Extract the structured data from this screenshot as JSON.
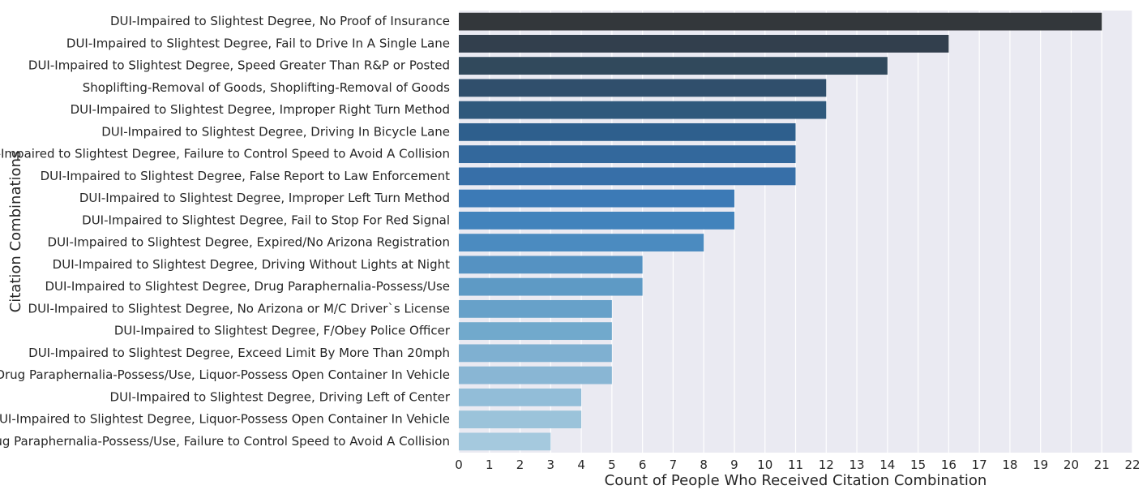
{
  "chart_data": {
    "type": "bar",
    "orientation": "horizontal",
    "xlabel": "Count of People Who Received Citation Combination",
    "ylabel": "Citation Combinations",
    "xlim": [
      0,
      22
    ],
    "xticks": [
      "0",
      "1",
      "2",
      "3",
      "4",
      "5",
      "6",
      "7",
      "8",
      "9",
      "10",
      "11",
      "12",
      "13",
      "14",
      "15",
      "16",
      "17",
      "18",
      "19",
      "20",
      "21",
      "22"
    ],
    "grid": true,
    "background": "#eaeaf2",
    "colors": [
      "#33373b",
      "#323f4d",
      "#31495c",
      "#304f6c",
      "#2f597c",
      "#2e5f8d",
      "#33689c",
      "#376fa8",
      "#3c7ab6",
      "#4283bc",
      "#4b8bc0",
      "#5592c2",
      "#5e9ac5",
      "#67a1c9",
      "#71a9cc",
      "#7fb0d1",
      "#89b6d4",
      "#92bdd8",
      "#9bc3da",
      "#a5c9de"
    ],
    "categories": [
      "DUI-Impaired to Slightest Degree, No Proof of Insurance",
      "DUI-Impaired to Slightest Degree, Fail to Drive In A Single Lane",
      "DUI-Impaired to Slightest Degree, Speed Greater Than R&P or Posted",
      "Shoplifting-Removal of Goods, Shoplifting-Removal of Goods",
      "DUI-Impaired to Slightest Degree, Improper Right Turn Method",
      "DUI-Impaired to Slightest Degree, Driving In Bicycle Lane",
      "DUI-Impaired to Slightest Degree, Failure to Control Speed to Avoid A Collision",
      "DUI-Impaired to Slightest Degree, False Report to Law Enforcement",
      "DUI-Impaired to Slightest Degree, Improper Left Turn Method",
      "DUI-Impaired to Slightest Degree, Fail to Stop For Red Signal",
      "DUI-Impaired to Slightest Degree, Expired/No Arizona Registration",
      "DUI-Impaired to Slightest Degree, Driving Without Lights at Night",
      "DUI-Impaired to Slightest Degree, Drug Paraphernalia-Possess/Use",
      "DUI-Impaired to Slightest Degree, No Arizona or M/C Driver`s License",
      "DUI-Impaired to Slightest Degree, F/Obey Police Officer",
      "DUI-Impaired to Slightest Degree, Exceed Limit By More Than 20mph",
      "Drug Paraphernalia-Possess/Use, Liquor-Possess Open Container In Vehicle",
      "DUI-Impaired to Slightest Degree, Driving Left of Center",
      "DUI-Impaired to Slightest Degree, Liquor-Possess Open Container In Vehicle",
      "Drug Paraphernalia-Possess/Use, Failure to Control Speed to Avoid A Collision"
    ],
    "values": [
      21,
      16,
      14,
      12,
      12,
      11,
      11,
      11,
      9,
      9,
      8,
      6,
      6,
      5,
      5,
      5,
      5,
      4,
      4,
      3
    ]
  }
}
